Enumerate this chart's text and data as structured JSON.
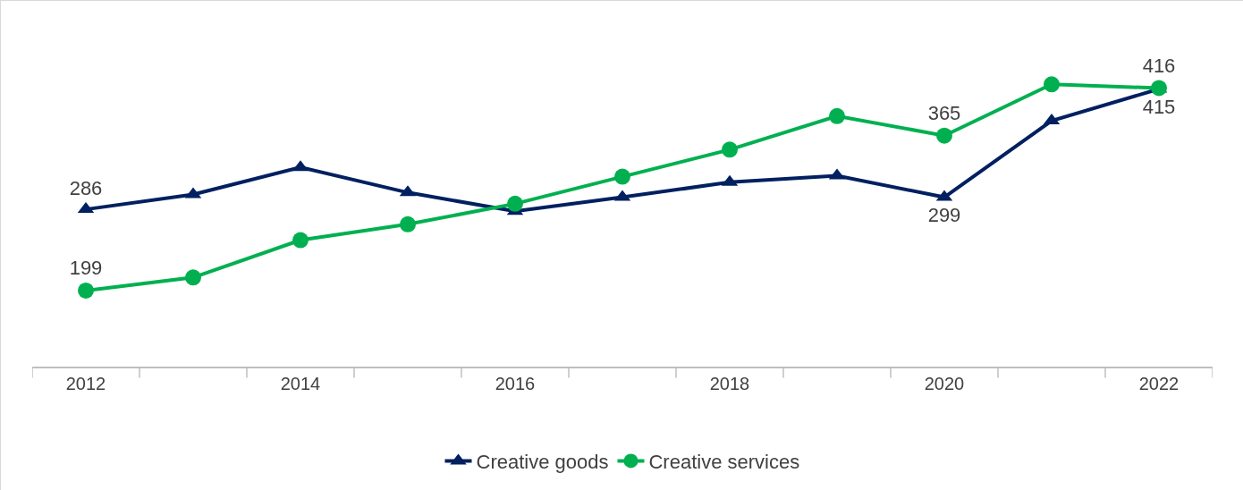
{
  "chart_data": {
    "type": "line",
    "categories": [
      "2012",
      null,
      "2014",
      null,
      "2016",
      null,
      "2018",
      null,
      "2020",
      null,
      "2022"
    ],
    "series": [
      {
        "name": "Creative goods",
        "color": "#002060",
        "marker": "triangle",
        "values": [
          286,
          302,
          331,
          304,
          284,
          299,
          315,
          322,
          299,
          381,
          415
        ],
        "value_labels": [
          "286",
          null,
          null,
          null,
          null,
          null,
          null,
          null,
          "299",
          null,
          "415"
        ]
      },
      {
        "name": "Creative services",
        "color": "#00b050",
        "marker": "circle",
        "values": [
          199,
          213,
          253,
          270,
          292,
          321,
          350,
          386,
          365,
          420,
          416
        ],
        "value_labels": [
          "199",
          null,
          null,
          null,
          null,
          null,
          null,
          null,
          "365",
          null,
          "416"
        ]
      }
    ],
    "legend": "bottom",
    "line_style": "solid"
  }
}
